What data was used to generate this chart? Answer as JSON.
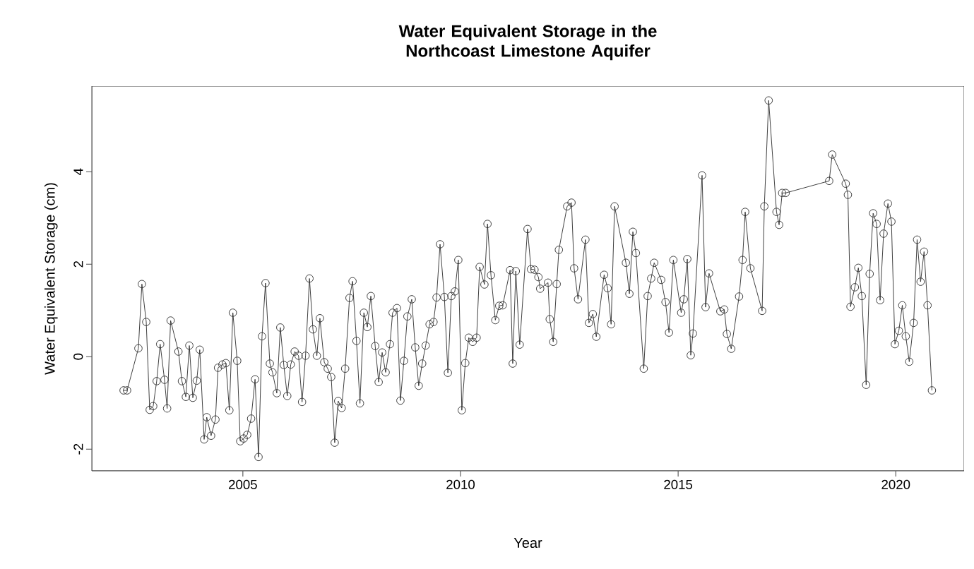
{
  "chart_data": {
    "type": "line",
    "title": "Water Equivalent Storage in the Northcoast Limestone Aquifer",
    "xlabel": "Year",
    "ylabel": "Water Equivalent Storage (cm)",
    "xlim": [
      2001.53,
      2021.57
    ],
    "ylim": [
      -2.47,
      5.85
    ],
    "xticks": [
      2005,
      2010,
      2015,
      2020
    ],
    "yticks": [
      -2,
      0,
      2,
      4
    ],
    "marker": "circle",
    "line_style": "solid",
    "series": [
      {
        "color": "#333333",
        "x": [
          2002.26,
          2002.34,
          2002.6,
          2002.68,
          2002.78,
          2002.86,
          2002.94,
          2003.02,
          2003.1,
          2003.2,
          2003.26,
          2003.34,
          2003.52,
          2003.6,
          2003.69,
          2003.77,
          2003.85,
          2003.94,
          2004.01,
          2004.11,
          2004.17,
          2004.27,
          2004.37,
          2004.43,
          2004.53,
          2004.61,
          2004.69,
          2004.77,
          2004.87,
          2004.94,
          2005.02,
          2005.1,
          2005.19,
          2005.28,
          2005.36,
          2005.44,
          2005.52,
          2005.62,
          2005.68,
          2005.78,
          2005.86,
          2005.94,
          2006.02,
          2006.1,
          2006.19,
          2006.28,
          2006.36,
          2006.44,
          2006.53,
          2006.61,
          2006.7,
          2006.77,
          2006.87,
          2006.95,
          2007.03,
          2007.11,
          2007.19,
          2007.27,
          2007.35,
          2007.45,
          2007.52,
          2007.61,
          2007.69,
          2007.78,
          2007.86,
          2007.94,
          2008.04,
          2008.12,
          2008.2,
          2008.28,
          2008.38,
          2008.44,
          2008.54,
          2008.62,
          2008.7,
          2008.78,
          2008.88,
          2008.96,
          2009.04,
          2009.12,
          2009.2,
          2009.29,
          2009.38,
          2009.45,
          2009.53,
          2009.63,
          2009.71,
          2009.79,
          2009.87,
          2009.95,
          2010.03,
          2010.11,
          2010.19,
          2010.28,
          2010.37,
          2010.44,
          2010.55,
          2010.62,
          2010.7,
          2010.8,
          2010.89,
          2010.97,
          2011.14,
          2011.2,
          2011.27,
          2011.36,
          2011.54,
          2011.62,
          2011.7,
          2011.79,
          2011.83,
          2012.01,
          2012.05,
          2012.13,
          2012.21,
          2012.26,
          2012.45,
          2012.55,
          2012.61,
          2012.7,
          2012.87,
          2012.95,
          2013.04,
          2013.12,
          2013.3,
          2013.38,
          2013.46,
          2013.54,
          2013.8,
          2013.88,
          2013.96,
          2014.03,
          2014.21,
          2014.3,
          2014.38,
          2014.45,
          2014.61,
          2014.71,
          2014.79,
          2014.89,
          2015.07,
          2015.13,
          2015.21,
          2015.29,
          2015.34,
          2015.55,
          2015.63,
          2015.71,
          2015.97,
          2016.06,
          2016.12,
          2016.22,
          2016.4,
          2016.48,
          2016.54,
          2016.66,
          2016.93,
          2016.98,
          2017.08,
          2017.26,
          2017.32,
          2017.39,
          2017.47,
          2018.47,
          2018.54,
          2018.85,
          2018.9,
          2018.96,
          2019.06,
          2019.14,
          2019.22,
          2019.32,
          2019.4,
          2019.48,
          2019.56,
          2019.64,
          2019.72,
          2019.82,
          2019.9,
          2019.98,
          2020.07,
          2020.15,
          2020.23,
          2020.31,
          2020.41,
          2020.49,
          2020.57,
          2020.65,
          2020.73,
          2020.83
        ],
        "values": [
          -0.73,
          -0.73,
          0.18,
          1.57,
          0.75,
          -1.15,
          -1.07,
          -0.53,
          0.27,
          -0.5,
          -1.12,
          0.78,
          0.11,
          -0.53,
          -0.87,
          0.24,
          -0.89,
          -0.52,
          0.15,
          -1.79,
          -1.31,
          -1.71,
          -1.36,
          -0.24,
          -0.17,
          -0.14,
          -1.16,
          0.95,
          -0.09,
          -1.83,
          -1.77,
          -1.69,
          -1.34,
          -0.49,
          -2.17,
          0.44,
          1.59,
          -0.15,
          -0.34,
          -0.79,
          0.63,
          -0.18,
          -0.85,
          -0.17,
          0.11,
          0.02,
          -0.98,
          0.02,
          1.69,
          0.59,
          0.02,
          0.83,
          -0.12,
          -0.26,
          -0.44,
          -1.86,
          -0.96,
          -1.11,
          -0.26,
          1.27,
          1.63,
          0.34,
          -1.01,
          0.95,
          0.64,
          1.31,
          0.23,
          -0.55,
          0.09,
          -0.34,
          0.27,
          0.95,
          1.05,
          -0.95,
          -0.09,
          0.87,
          1.24,
          0.2,
          -0.63,
          -0.15,
          0.24,
          0.7,
          0.75,
          1.28,
          2.43,
          1.29,
          -0.35,
          1.31,
          1.41,
          2.09,
          -1.16,
          -0.14,
          0.41,
          0.32,
          0.41,
          1.94,
          1.56,
          2.87,
          1.76,
          0.79,
          1.1,
          1.11,
          1.87,
          -0.15,
          1.85,
          0.26,
          2.76,
          1.89,
          1.88,
          1.72,
          1.47,
          1.6,
          0.81,
          0.32,
          1.57,
          2.31,
          3.25,
          3.33,
          1.91,
          1.24,
          2.53,
          0.73,
          0.92,
          0.43,
          1.77,
          1.48,
          0.7,
          3.25,
          2.03,
          1.36,
          2.7,
          2.24,
          -0.26,
          1.31,
          1.69,
          2.03,
          1.66,
          1.18,
          0.52,
          2.09,
          0.95,
          1.24,
          2.11,
          0.03,
          0.5,
          3.92,
          1.07,
          1.8,
          0.98,
          1.02,
          0.49,
          0.17,
          1.3,
          2.09,
          3.13,
          1.91,
          0.99,
          3.25,
          5.54,
          3.13,
          2.85,
          3.54,
          3.54,
          3.8,
          4.37,
          3.74,
          3.5,
          1.08,
          1.5,
          1.92,
          1.31,
          -0.61,
          1.79,
          3.1,
          2.87,
          1.22,
          2.66,
          3.31,
          2.92,
          0.27,
          0.56,
          1.11,
          0.44,
          -0.11,
          0.73,
          2.53,
          1.62,
          2.27,
          1.11,
          -0.73
        ]
      }
    ]
  }
}
